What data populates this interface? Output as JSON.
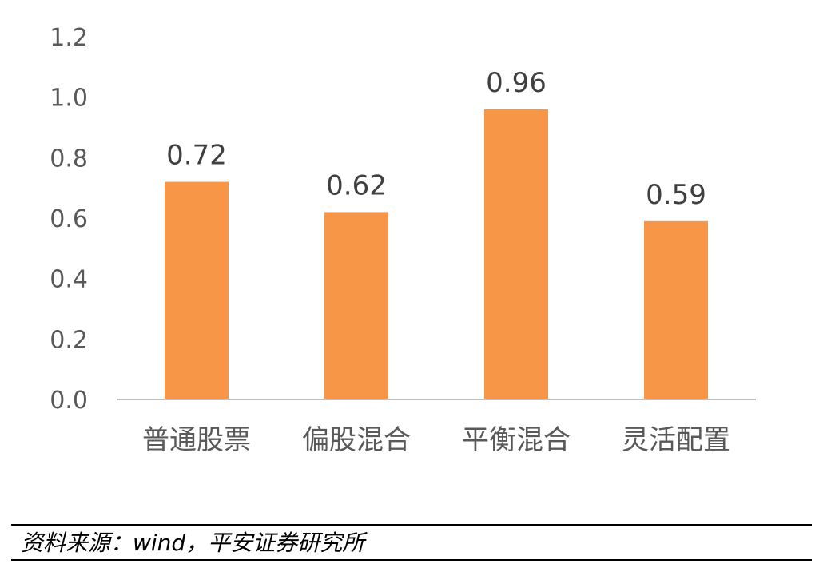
{
  "chart_data": {
    "type": "bar",
    "categories": [
      "普通股票",
      "偏股混合",
      "平衡混合",
      "灵活配置"
    ],
    "values": [
      0.72,
      0.62,
      0.96,
      0.59
    ],
    "data_labels": [
      "0.72",
      "0.62",
      "0.96",
      "0.59"
    ],
    "yticks": [
      "0.0",
      "0.2",
      "0.4",
      "0.6",
      "0.8",
      "1.0",
      "1.2"
    ],
    "ylim": [
      0,
      1.2
    ],
    "grid": false,
    "legend": "none",
    "bar_color": "#F79646",
    "axis_color": "#BFBFBF"
  },
  "source": {
    "text": "资料来源：wind，平安证券研究所"
  }
}
